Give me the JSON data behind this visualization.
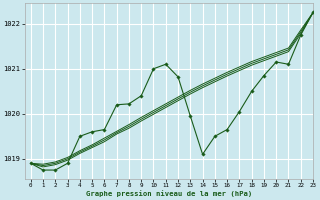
{
  "title": "Graphe pression niveau de la mer (hPa)",
  "background_color": "#cce8ee",
  "grid_color": "#ffffff",
  "line_color": "#1a5c1a",
  "xlim": [
    -0.5,
    23
  ],
  "ylim": [
    1018.55,
    1022.45
  ],
  "yticks": [
    1019,
    1020,
    1021,
    1022
  ],
  "xticks": [
    0,
    1,
    2,
    3,
    4,
    5,
    6,
    7,
    8,
    9,
    10,
    11,
    12,
    13,
    14,
    15,
    16,
    17,
    18,
    19,
    20,
    21,
    22,
    23
  ],
  "ys_main": [
    1018.9,
    1018.75,
    1018.75,
    1018.9,
    1019.5,
    1019.6,
    1019.65,
    1020.2,
    1020.22,
    1020.4,
    1021.0,
    1021.1,
    1020.82,
    1019.95,
    1019.1,
    1019.5,
    1019.65,
    1020.05,
    1020.5,
    1020.85,
    1021.15,
    1021.1,
    1021.75,
    1022.25
  ],
  "ys_trend1": [
    1018.9,
    1018.85,
    1018.9,
    1019.0,
    1019.15,
    1019.28,
    1019.42,
    1019.58,
    1019.72,
    1019.88,
    1020.03,
    1020.18,
    1020.33,
    1020.48,
    1020.62,
    1020.75,
    1020.88,
    1021.0,
    1021.12,
    1021.22,
    1021.32,
    1021.42,
    1021.82,
    1022.25
  ],
  "ys_trend2": [
    1018.9,
    1018.82,
    1018.87,
    1018.97,
    1019.12,
    1019.25,
    1019.38,
    1019.55,
    1019.68,
    1019.84,
    1019.99,
    1020.14,
    1020.29,
    1020.44,
    1020.58,
    1020.71,
    1020.84,
    1020.96,
    1021.08,
    1021.18,
    1021.28,
    1021.38,
    1021.78,
    1022.25
  ],
  "ys_trend3": [
    1018.9,
    1018.88,
    1018.93,
    1019.03,
    1019.18,
    1019.31,
    1019.46,
    1019.61,
    1019.76,
    1019.92,
    1020.07,
    1020.22,
    1020.37,
    1020.52,
    1020.66,
    1020.79,
    1020.92,
    1021.04,
    1021.16,
    1021.26,
    1021.36,
    1021.46,
    1021.86,
    1022.25
  ]
}
